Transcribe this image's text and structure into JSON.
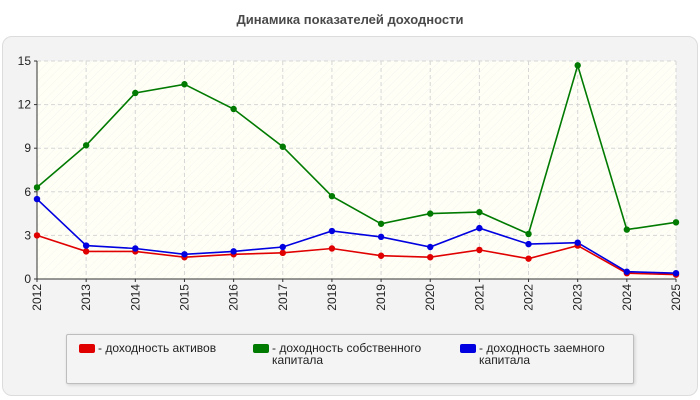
{
  "chart_data": {
    "type": "line",
    "title": "Динамика показателей доходности",
    "xlabel": "",
    "ylabel": "",
    "categories": [
      "2012",
      "2013",
      "2014",
      "2015",
      "2016",
      "2017",
      "2018",
      "2019",
      "2020",
      "2021",
      "2022",
      "2023",
      "2024",
      "2025"
    ],
    "ylim": [
      0,
      15
    ],
    "yticks": [
      0,
      3,
      6,
      9,
      12,
      15
    ],
    "grid": true,
    "legend_position": "bottom",
    "series": [
      {
        "name": "- доходность активов",
        "color": "#e00000",
        "values": [
          3.0,
          1.9,
          1.9,
          1.5,
          1.7,
          1.8,
          2.1,
          1.6,
          1.5,
          2.0,
          1.4,
          2.3,
          0.4,
          0.3
        ]
      },
      {
        "name": "- доходность собственного капитала",
        "color": "#007a00",
        "values": [
          6.3,
          9.2,
          12.8,
          13.4,
          11.7,
          9.1,
          5.7,
          3.8,
          4.5,
          4.6,
          3.1,
          14.7,
          3.4,
          3.9
        ]
      },
      {
        "name": "- доходность заемного капитала",
        "color": "#0000e0",
        "values": [
          5.5,
          2.3,
          2.1,
          1.7,
          1.9,
          2.2,
          3.3,
          2.9,
          2.2,
          3.5,
          2.4,
          2.5,
          0.5,
          0.4
        ]
      }
    ]
  }
}
